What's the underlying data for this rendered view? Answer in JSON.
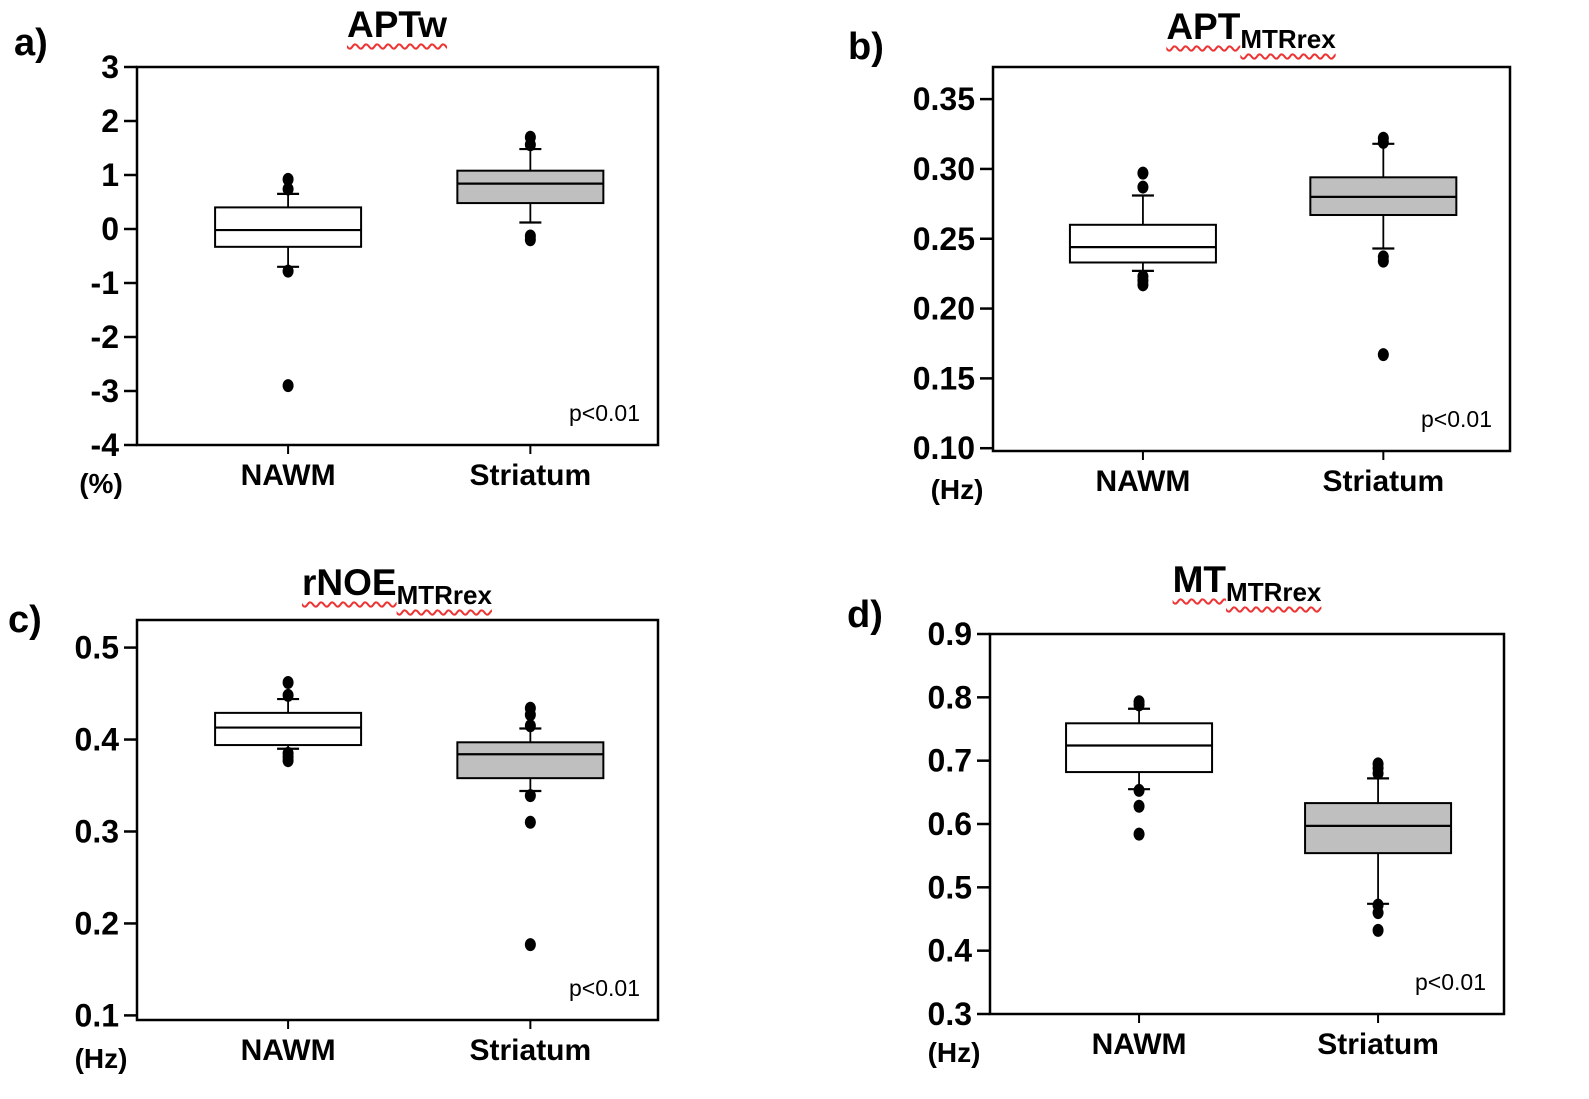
{
  "figure": {
    "significance_note": "p<0.01",
    "group_colors": {
      "NAWM": "#ffffff",
      "Striatum": "#bfbfbf"
    },
    "axis_color": "#000000"
  },
  "chart_data": [
    {
      "type": "box",
      "panel_label": "a)",
      "title": "APTw",
      "title_sub": "",
      "unit": "(%)",
      "p_label": "p<0.01",
      "categories": [
        "NAWM",
        "Striatum"
      ],
      "ylim": [
        -4,
        3
      ],
      "yticks": [
        3,
        2,
        1,
        0,
        -1,
        -2,
        -3,
        -4
      ],
      "ytick_labels": [
        "3",
        "2",
        "1",
        "0",
        "-1",
        "-2",
        "-3",
        "-4"
      ],
      "grid": false,
      "series": [
        {
          "name": "NAWM",
          "fill": "#ffffff",
          "q1": -0.33,
          "median": -0.02,
          "q3": 0.4,
          "whisker_low": -0.7,
          "whisker_high": 0.65,
          "outliers_high": [
            0.92,
            0.74
          ],
          "outliers_low": [
            -0.78,
            -2.9
          ]
        },
        {
          "name": "Striatum",
          "fill": "#bfbfbf",
          "q1": 0.48,
          "median": 0.84,
          "q3": 1.08,
          "whisker_low": 0.12,
          "whisker_high": 1.48,
          "outliers_high": [
            1.7,
            1.56
          ],
          "outliers_low": [
            -0.13,
            -0.2
          ]
        }
      ]
    },
    {
      "type": "box",
      "panel_label": "b)",
      "title": "APT",
      "title_sub": "MTRrex",
      "unit": "(Hz)",
      "p_label": "p<0.01",
      "categories": [
        "NAWM",
        "Striatum"
      ],
      "ylim": [
        0.098,
        0.373
      ],
      "yticks": [
        0.35,
        0.3,
        0.25,
        0.2,
        0.15,
        0.1
      ],
      "ytick_labels": [
        "0.35",
        "0.30",
        "0.25",
        "0.20",
        "0.15",
        "0.10"
      ],
      "grid": false,
      "series": [
        {
          "name": "NAWM",
          "fill": "#ffffff",
          "q1": 0.233,
          "median": 0.244,
          "q3": 0.26,
          "whisker_low": 0.227,
          "whisker_high": 0.281,
          "outliers_high": [
            0.297,
            0.287
          ],
          "outliers_low": [
            0.223,
            0.22,
            0.217
          ]
        },
        {
          "name": "Striatum",
          "fill": "#bfbfbf",
          "q1": 0.267,
          "median": 0.28,
          "q3": 0.294,
          "whisker_low": 0.243,
          "whisker_high": 0.318,
          "outliers_high": [
            0.322,
            0.319
          ],
          "outliers_low": [
            0.237,
            0.234,
            0.167
          ]
        }
      ]
    },
    {
      "type": "box",
      "panel_label": "c)",
      "title": "rNOE",
      "title_sub": "MTRrex",
      "unit": "(Hz)",
      "p_label": "p<0.01",
      "categories": [
        "NAWM",
        "Striatum"
      ],
      "ylim": [
        0.095,
        0.53
      ],
      "yticks": [
        0.5,
        0.4,
        0.3,
        0.2,
        0.1
      ],
      "ytick_labels": [
        "0.5",
        "0.4",
        "0.3",
        "0.2",
        "0.1"
      ],
      "grid": false,
      "series": [
        {
          "name": "NAWM",
          "fill": "#ffffff",
          "q1": 0.394,
          "median": 0.413,
          "q3": 0.429,
          "whisker_low": 0.39,
          "whisker_high": 0.444,
          "outliers_high": [
            0.462,
            0.448
          ],
          "outliers_low": [
            0.385,
            0.381,
            0.377
          ]
        },
        {
          "name": "Striatum",
          "fill": "#bfbfbf",
          "q1": 0.358,
          "median": 0.384,
          "q3": 0.397,
          "whisker_low": 0.344,
          "whisker_high": 0.412,
          "outliers_high": [
            0.434,
            0.427,
            0.415
          ],
          "outliers_low": [
            0.339,
            0.31,
            0.177
          ]
        }
      ]
    },
    {
      "type": "box",
      "panel_label": "d)",
      "title": "MT",
      "title_sub": "MTRrex",
      "unit": "(Hz)",
      "p_label": "p<0.01",
      "categories": [
        "NAWM",
        "Striatum"
      ],
      "ylim": [
        0.3,
        0.9
      ],
      "yticks": [
        0.9,
        0.8,
        0.7,
        0.6,
        0.5,
        0.4,
        0.3
      ],
      "ytick_labels": [
        "0.9",
        "0.8",
        "0.7",
        "0.6",
        "0.5",
        "0.4",
        "0.3"
      ],
      "grid": false,
      "series": [
        {
          "name": "NAWM",
          "fill": "#ffffff",
          "q1": 0.682,
          "median": 0.724,
          "q3": 0.759,
          "whisker_low": 0.655,
          "whisker_high": 0.782,
          "outliers_high": [
            0.793,
            0.788
          ],
          "outliers_low": [
            0.653,
            0.628,
            0.584
          ]
        },
        {
          "name": "Striatum",
          "fill": "#bfbfbf",
          "q1": 0.554,
          "median": 0.597,
          "q3": 0.633,
          "whisker_low": 0.474,
          "whisker_high": 0.672,
          "outliers_high": [
            0.695,
            0.688,
            0.68
          ],
          "outliers_low": [
            0.472,
            0.46,
            0.432
          ]
        }
      ]
    }
  ]
}
